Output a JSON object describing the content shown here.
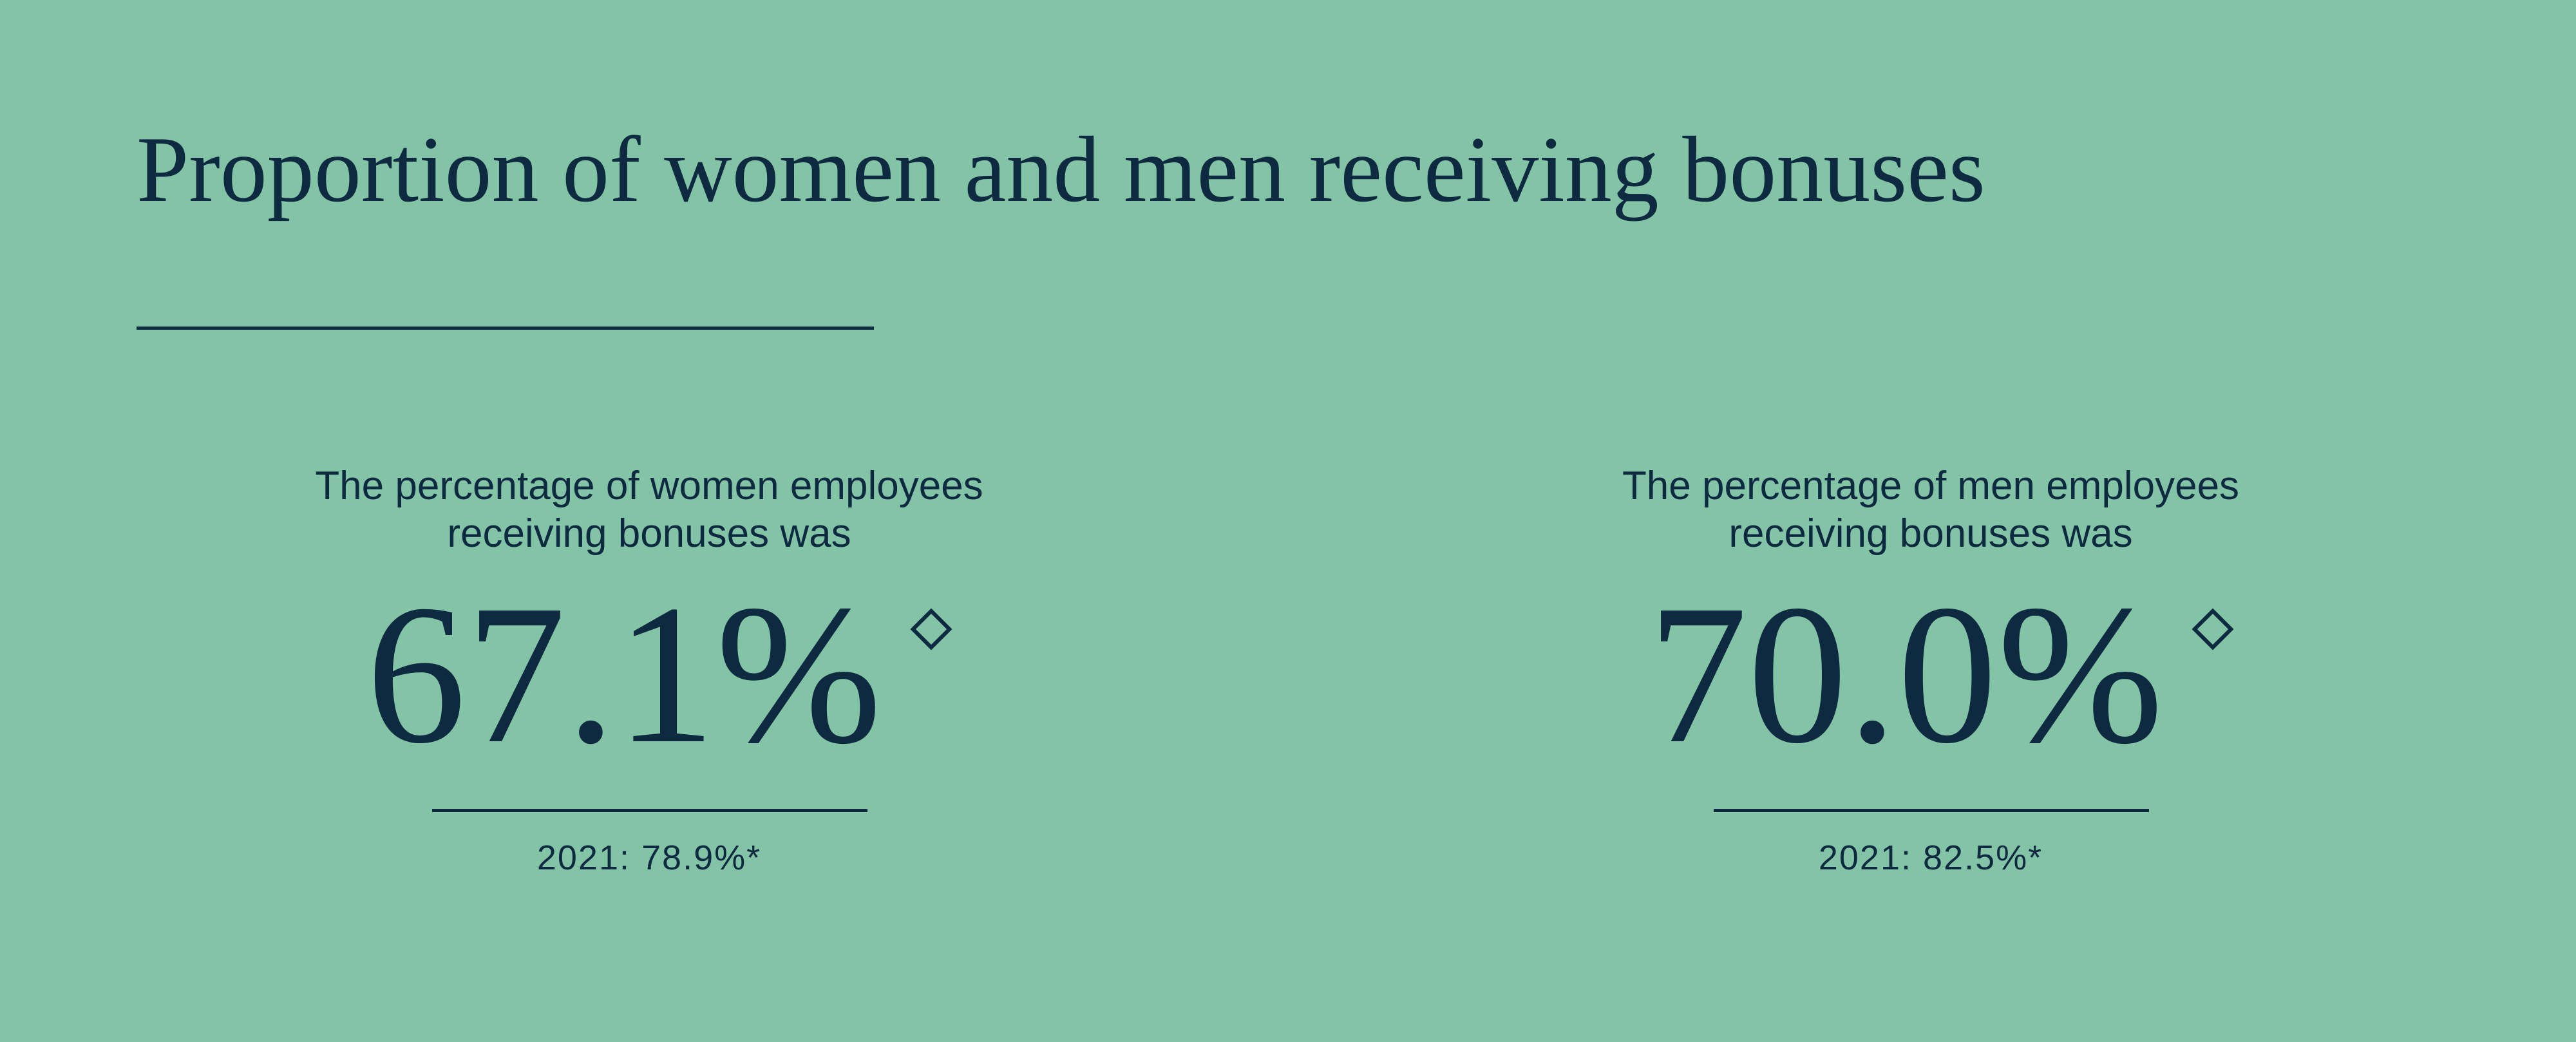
{
  "header": {
    "title": "Proportion of women and men receiving bonuses"
  },
  "stats": [
    {
      "caption": [
        "The percentage of women employees",
        "receiving bonuses was"
      ],
      "value": "67.1%",
      "previous": "2021: 78.9%*"
    },
    {
      "caption": [
        "The percentage of men employees",
        "receiving bonuses was"
      ],
      "value": "70.0%",
      "previous": "2021: 82.5%*"
    }
  ]
}
